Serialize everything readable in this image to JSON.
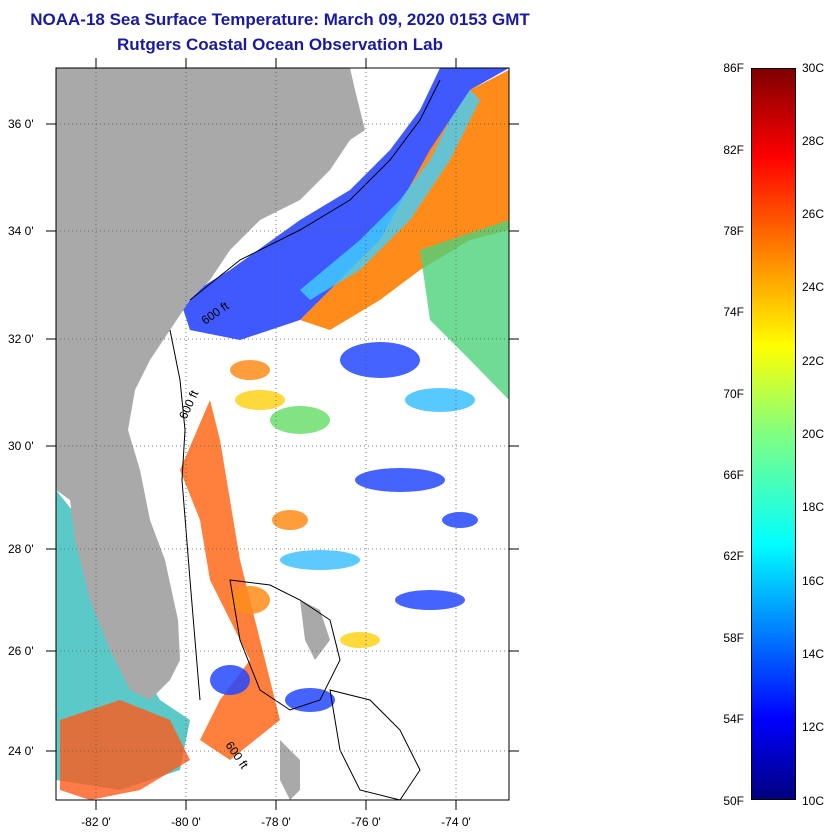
{
  "title_line1": "NOAA-18 Sea Surface Temperature:  March 09, 2020 0153 GMT",
  "title_line2": "Rutgers Coastal Ocean Observation Lab",
  "lat_labels": [
    "36 0'",
    "34 0'",
    "32 0'",
    "30 0'",
    "28 0'",
    "26 0'",
    "24 0'"
  ],
  "lon_labels": [
    "-82 0'",
    "-80 0'",
    "-78 0'",
    "-76 0'",
    "-74 0'"
  ],
  "contour_labels": [
    "600 ft",
    "600 ft",
    "600 ft"
  ],
  "colorbar": {
    "fahrenheit": [
      "86F",
      "82F",
      "78F",
      "74F",
      "70F",
      "66F",
      "62F",
      "58F",
      "54F",
      "50F"
    ],
    "celsius": [
      "30C",
      "28C",
      "26C",
      "24C",
      "22C",
      "20C",
      "18C",
      "16C",
      "14C",
      "12C",
      "10C"
    ]
  },
  "colors": {
    "land": "#a9a9a9",
    "cloud": "#ffffff",
    "title": "#1a1aa0"
  }
}
